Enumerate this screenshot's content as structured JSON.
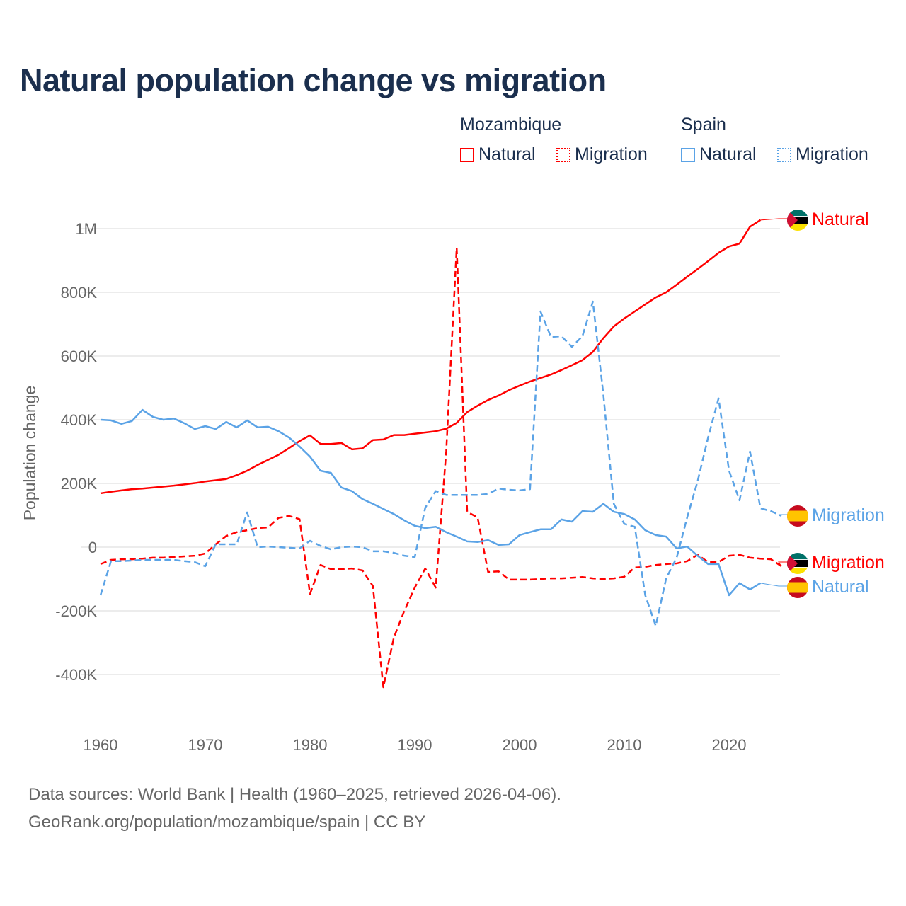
{
  "chart_data": {
    "type": "line",
    "title": "Natural population change vs migration",
    "xlabel": "",
    "ylabel": "Population change",
    "xlim": [
      1960,
      2025
    ],
    "ylim": [
      -500000,
      1100000
    ],
    "grid": true,
    "x_ticks": [
      1960,
      1970,
      1980,
      1990,
      2000,
      2010,
      2020
    ],
    "x_tick_labels": [
      "1960",
      "1970",
      "1980",
      "1990",
      "2000",
      "2010",
      "2020"
    ],
    "y_ticks": [
      -400000,
      -200000,
      0,
      200000,
      400000,
      600000,
      800000,
      1000000
    ],
    "y_tick_labels": [
      "-400K",
      "-200K",
      "0",
      "200K",
      "400K",
      "600K",
      "800K",
      "1M"
    ],
    "legend": {
      "placement": "top-right",
      "groups": [
        {
          "name": "Mozambique",
          "items": [
            "Natural",
            "Migration"
          ]
        },
        {
          "name": "Spain",
          "items": [
            "Natural",
            "Migration"
          ]
        }
      ]
    },
    "series": [
      {
        "name": "Mozambique Natural",
        "country": "Mozambique",
        "kind": "Natural",
        "end_label": "Natural",
        "color": "#ff0000",
        "dashed": false,
        "start_year": 1960,
        "values": [
          169,
          174,
          178,
          182,
          184,
          187,
          190,
          193,
          197,
          201,
          206,
          210,
          214,
          226,
          240,
          258,
          274,
          290,
          311,
          333,
          351,
          324,
          324,
          327,
          307,
          310,
          336,
          338,
          352,
          352,
          356,
          360,
          364,
          372,
          390,
          424,
          444,
          462,
          476,
          493,
          507,
          520,
          531,
          542,
          556,
          571,
          587,
          613,
          656,
          693,
          718,
          740,
          762,
          784,
          800,
          824,
          849,
          873,
          898,
          924,
          944,
          953,
          1006,
          1027
        ]
      },
      {
        "name": "Mozambique Migration",
        "country": "Mozambique",
        "kind": "Migration",
        "end_label": "Migration",
        "color": "#ff0000",
        "dashed": true,
        "start_year": 1960,
        "values": [
          -53,
          -40,
          -38,
          -38,
          -36,
          -33,
          -33,
          -31,
          -29,
          -27,
          -20,
          9,
          35,
          47,
          53,
          60,
          62,
          92,
          98,
          88,
          -147,
          -56,
          -69,
          -69,
          -67,
          -73,
          -122,
          -440,
          -284,
          -200,
          -127,
          -67,
          -127,
          300,
          940,
          111,
          93,
          -78,
          -76,
          -102,
          -102,
          -102,
          -100,
          -98,
          -98,
          -96,
          -94,
          -98,
          -100,
          -98,
          -93,
          -64,
          -62,
          -56,
          -53,
          -51,
          -44,
          -24,
          -47,
          -47,
          -27,
          -24,
          -33,
          -36,
          -38,
          -60
        ]
      },
      {
        "name": "Spain Natural",
        "country": "Spain",
        "kind": "Natural",
        "end_label": "Natural",
        "color": "#5ba3e6",
        "dashed": false,
        "start_year": 1960,
        "values": [
          400,
          398,
          387,
          396,
          431,
          409,
          400,
          404,
          389,
          371,
          380,
          371,
          393,
          376,
          398,
          376,
          378,
          364,
          344,
          316,
          284,
          240,
          233,
          187,
          176,
          151,
          136,
          120,
          104,
          84,
          67,
          60,
          64,
          47,
          33,
          18,
          16,
          22,
          7,
          9,
          38,
          47,
          56,
          56,
          87,
          80,
          113,
          111,
          136,
          111,
          104,
          87,
          53,
          38,
          33,
          -4,
          2,
          -27,
          -53,
          -53,
          -151,
          -113,
          -133,
          -113
        ]
      },
      {
        "name": "Spain Migration",
        "country": "Spain",
        "kind": "Migration",
        "end_label": "Migration",
        "color": "#5ba3e6",
        "dashed": true,
        "start_year": 1960,
        "values": [
          -151,
          -44,
          -44,
          -42,
          -40,
          -40,
          -40,
          -40,
          -44,
          -47,
          -60,
          9,
          9,
          9,
          109,
          0,
          2,
          0,
          -2,
          -4,
          20,
          4,
          -7,
          0,
          2,
          0,
          -13,
          -13,
          -18,
          -27,
          -31,
          124,
          176,
          164,
          164,
          164,
          164,
          167,
          184,
          180,
          178,
          182,
          740,
          660,
          662,
          629,
          662,
          771,
          480,
          136,
          73,
          64,
          -151,
          -247,
          -98,
          -33,
          93,
          207,
          344,
          467,
          240,
          147,
          300,
          122,
          113,
          98
        ]
      }
    ],
    "value_unit": "thousands"
  },
  "footer": {
    "source_line": "Data sources: World Bank | Health (1960–2025, retrieved 2026-04-06).",
    "credit_line": "GeoRank.org/population/mozambique/spain | CC BY"
  },
  "colors": {
    "mozambique": "#ff0000",
    "spain": "#5ba3e6",
    "title": "#1b2f4e"
  }
}
